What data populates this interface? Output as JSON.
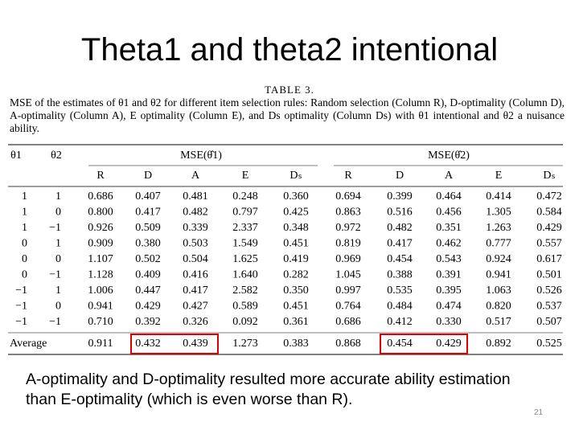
{
  "title": "Theta1 and theta2 intentional",
  "table": {
    "name": "TABLE 3.",
    "caption": "MSE of the estimates of θ1 and θ2 for different item selection rules: Random selection (Column R), D-optimality (Column D), A-optimality (Column A), E optimality (Column E), and Ds optimality (Column Ds) with θ1 intentional and θ2 a nuisance ability.",
    "header": [
      "θ1",
      "θ2",
      "MSE(θ̂1)",
      "MSE(θ̂2)"
    ],
    "subheader": [
      "R",
      "D",
      "A",
      "E",
      "Dₛ",
      "R",
      "D",
      "A",
      "E",
      "Dₛ"
    ],
    "rows": [
      [
        "1",
        "1",
        "0.686",
        "0.407",
        "0.481",
        "0.248",
        "0.360",
        "0.694",
        "0.399",
        "0.464",
        "0.414",
        "0.472"
      ],
      [
        "1",
        "0",
        "0.800",
        "0.417",
        "0.482",
        "0.797",
        "0.425",
        "0.863",
        "0.516",
        "0.456",
        "1.305",
        "0.584"
      ],
      [
        "1",
        "−1",
        "0.926",
        "0.509",
        "0.339",
        "2.337",
        "0.348",
        "0.972",
        "0.482",
        "0.351",
        "1.263",
        "0.429"
      ],
      [
        "0",
        "1",
        "0.909",
        "0.380",
        "0.503",
        "1.549",
        "0.451",
        "0.819",
        "0.417",
        "0.462",
        "0.777",
        "0.557"
      ],
      [
        "0",
        "0",
        "1.107",
        "0.502",
        "0.504",
        "1.625",
        "0.419",
        "0.969",
        "0.454",
        "0.543",
        "0.924",
        "0.617"
      ],
      [
        "0",
        "−1",
        "1.128",
        "0.409",
        "0.416",
        "1.640",
        "0.282",
        "1.045",
        "0.388",
        "0.391",
        "0.941",
        "0.501"
      ],
      [
        "−1",
        "1",
        "1.006",
        "0.447",
        "0.417",
        "2.582",
        "0.350",
        "0.997",
        "0.535",
        "0.395",
        "1.063",
        "0.526"
      ],
      [
        "−1",
        "0",
        "0.941",
        "0.429",
        "0.427",
        "0.589",
        "0.451",
        "0.764",
        "0.484",
        "0.474",
        "0.820",
        "0.537"
      ],
      [
        "−1",
        "−1",
        "0.710",
        "0.392",
        "0.326",
        "0.092",
        "0.361",
        "0.686",
        "0.412",
        "0.330",
        "0.517",
        "0.507"
      ]
    ],
    "average": [
      "Average",
      "0.911",
      "0.432",
      "0.439",
      "1.273",
      "0.383",
      "0.868",
      "0.454",
      "0.429",
      "0.892",
      "0.525"
    ]
  },
  "note": "A-optimality and D-optimality resulted more accurate ability estimation than E-optimality (which is even worse than R).",
  "page_number": "21"
}
